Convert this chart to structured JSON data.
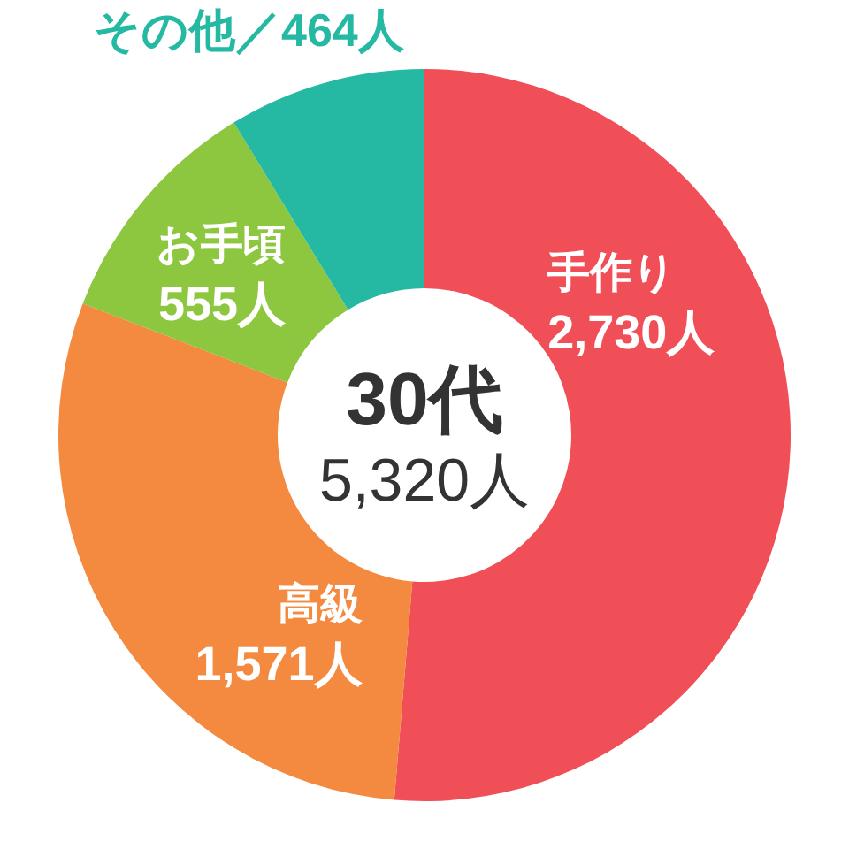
{
  "chart_data": {
    "type": "donut",
    "title": "30代",
    "subtitle": "5,320人",
    "categories": [
      "手作り",
      "高級",
      "お手頃",
      "その他"
    ],
    "values": [
      2730,
      1571,
      555,
      464
    ],
    "value_labels": [
      "2,730人",
      "1,571人",
      "555人",
      "／464人"
    ],
    "colors": [
      "#f04f58",
      "#f48940",
      "#8dc63f",
      "#25b9a3"
    ]
  }
}
